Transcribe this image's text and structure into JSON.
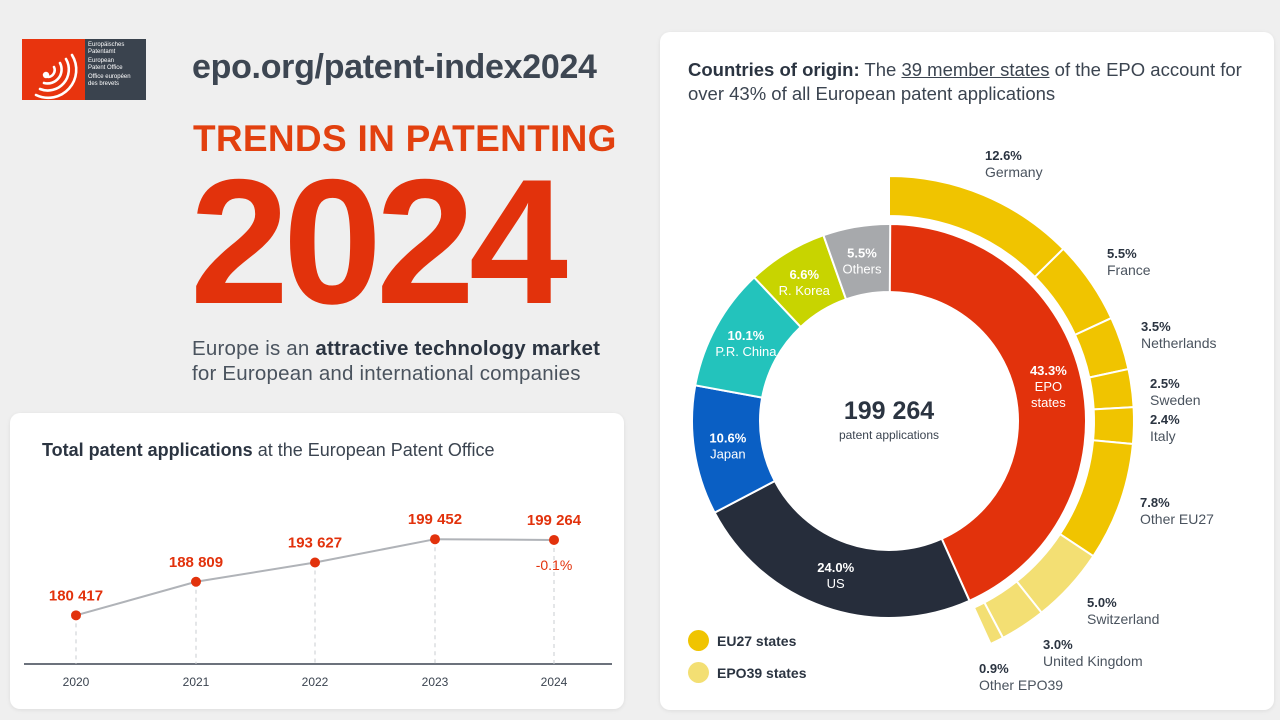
{
  "logo": {
    "lines": [
      "Europäisches",
      "Patentamt",
      "European",
      "Patent Office",
      "Office européen",
      "des brevets"
    ]
  },
  "header": {
    "url": "epo.org/patent-index2024",
    "trends_title": "TRENDS IN PATENTING",
    "year": "2024",
    "subtitle_pre": "Europe is an ",
    "subtitle_bold": "attractive technology market",
    "subtitle_post": "for European and international companies"
  },
  "colors": {
    "epo_red": "#e2320c",
    "dark_navy": "#262d3b",
    "blue": "#0a5fc4",
    "teal": "#23c3bc",
    "lime": "#c8d400",
    "grey": "#a7a9ac",
    "eu27_yellow": "#f0c400",
    "epo39_yellow": "#f3df73"
  },
  "line_card": {
    "title_bold": "Total patent applications",
    "title_rest": " at the European Patent Office"
  },
  "donut_card": {
    "title_bold": "Countries of origin:",
    "title_pre": " The ",
    "title_link": "39 member states",
    "title_post": " of the EPO account for over 43% of all European patent applications",
    "center_value": "199 264",
    "center_label": "patent applications",
    "legend": [
      {
        "label": "EU27 states",
        "color": "#f0c400"
      },
      {
        "label": "EPO39 states",
        "color": "#f3df73"
      }
    ]
  },
  "chart_data": [
    {
      "type": "line",
      "title": "Total patent applications at the European Patent Office",
      "x": [
        "2020",
        "2021",
        "2022",
        "2023",
        "2024"
      ],
      "values": [
        180417,
        188809,
        193627,
        199452,
        199264
      ],
      "value_labels": [
        "180 417",
        "188 809",
        "193 627",
        "199 452",
        "199 264"
      ],
      "annotation": "-0.1%",
      "grid": false
    },
    {
      "type": "pie",
      "title": "Countries of origin",
      "total": 199264,
      "slices": [
        {
          "name": "EPO states",
          "value": 43.3,
          "label": "43.3%",
          "color": "#e2320c"
        },
        {
          "name": "US",
          "value": 24.0,
          "label": "24.0%",
          "color": "#262d3b"
        },
        {
          "name": "Japan",
          "value": 10.6,
          "label": "10.6%",
          "color": "#0a5fc4"
        },
        {
          "name": "P.R. China",
          "value": 10.1,
          "label": "10.1%",
          "color": "#23c3bc"
        },
        {
          "name": "R. Korea",
          "value": 6.6,
          "label": "6.6%",
          "color": "#c8d400"
        },
        {
          "name": "Others",
          "value": 5.5,
          "label": "5.5%",
          "color": "#a7a9ac"
        }
      ],
      "outer_ring": [
        {
          "name": "Germany",
          "value": 12.6,
          "label": "12.6%",
          "group": "EU27 states"
        },
        {
          "name": "France",
          "value": 5.5,
          "label": "5.5%",
          "group": "EU27 states"
        },
        {
          "name": "Netherlands",
          "value": 3.5,
          "label": "3.5%",
          "group": "EU27 states"
        },
        {
          "name": "Sweden",
          "value": 2.5,
          "label": "2.5%",
          "group": "EU27 states"
        },
        {
          "name": "Italy",
          "value": 2.4,
          "label": "2.4%",
          "group": "EU27 states"
        },
        {
          "name": "Other EU27",
          "value": 7.8,
          "label": "7.8%",
          "group": "EU27 states"
        },
        {
          "name": "Switzerland",
          "value": 5.0,
          "label": "5.0%",
          "group": "EPO39 states"
        },
        {
          "name": "United Kingdom",
          "value": 3.0,
          "label": "3.0%",
          "group": "EPO39 states"
        },
        {
          "name": "Other EPO39",
          "value": 0.9,
          "label": "0.9%",
          "group": "EPO39 states"
        }
      ]
    }
  ]
}
